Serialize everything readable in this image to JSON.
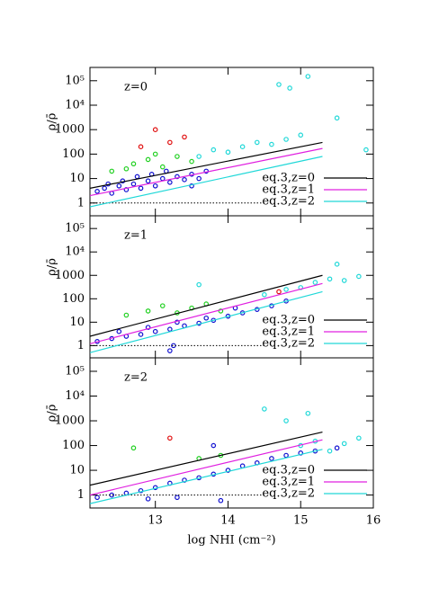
{
  "chart_data": [
    {
      "type": "scatter",
      "panel_label": "z=0",
      "ylabel": "ρ/ρ̄",
      "log_y": true,
      "xlim": [
        12.1,
        16
      ],
      "xticks": [
        13,
        14,
        15,
        16
      ],
      "ylim": [
        0.3,
        350000
      ],
      "yticks": [
        1,
        10,
        100,
        1000,
        {
          "value": 10000,
          "label": "10⁴"
        },
        {
          "value": 100000,
          "label": "10⁵"
        }
      ],
      "series": [
        {
          "color": "#1010d0",
          "x": [
            12.2,
            12.3,
            12.4,
            12.5,
            12.6,
            12.7,
            12.8,
            12.9,
            13.0,
            13.1,
            13.2,
            13.3,
            13.4,
            13.5,
            13.6,
            13.7,
            12.35,
            12.55,
            12.75,
            12.95,
            13.15,
            13.5
          ],
          "values": [
            3,
            4,
            2.5,
            5,
            3.5,
            6,
            4,
            8,
            5,
            10,
            7,
            12,
            9,
            15,
            10,
            20,
            6,
            8,
            12,
            15,
            20,
            5
          ]
        },
        {
          "color": "#20d020",
          "x": [
            12.4,
            12.7,
            12.9,
            13.1,
            13.3,
            13.5,
            13.0,
            12.6
          ],
          "values": [
            20,
            40,
            60,
            30,
            80,
            50,
            100,
            25
          ]
        },
        {
          "color": "#e01010",
          "x": [
            12.8,
            13.0,
            13.2,
            13.4
          ],
          "values": [
            200,
            1000,
            300,
            500
          ]
        },
        {
          "color": "#20d8d8",
          "x": [
            13.6,
            13.8,
            14.0,
            14.2,
            14.4,
            14.6,
            14.8,
            15.0,
            14.7,
            14.85,
            15.1,
            15.5,
            15.9
          ],
          "values": [
            80,
            150,
            120,
            200,
            300,
            250,
            400,
            600,
            70000,
            50000,
            150000,
            3000,
            150
          ]
        }
      ],
      "lines": [
        {
          "name": "eq.3,z=0",
          "color": "#000000",
          "x": [
            12.1,
            15.3
          ],
          "values": [
            4,
            300
          ]
        },
        {
          "name": "eq.3,z=1",
          "color": "#e020e0",
          "x": [
            12.1,
            15.3
          ],
          "values": [
            2,
            170
          ]
        },
        {
          "name": "eq.3,z=2",
          "color": "#20d8d8",
          "x": [
            12.1,
            15.3
          ],
          "values": [
            0.7,
            80
          ]
        }
      ],
      "reference": {
        "x": [
          12.1,
          14.5
        ],
        "values": [
          1,
          1
        ]
      }
    },
    {
      "type": "scatter",
      "panel_label": "z=1",
      "ylabel": "ρ/ρ̄",
      "log_y": true,
      "xlim": [
        12.1,
        16
      ],
      "xticks": [
        13,
        14,
        15,
        16
      ],
      "ylim": [
        0.3,
        350000
      ],
      "yticks": [
        1,
        10,
        100,
        1000,
        {
          "value": 10000,
          "label": "10⁴"
        },
        {
          "value": 100000,
          "label": "10⁵"
        }
      ],
      "series": [
        {
          "color": "#1010d0",
          "x": [
            12.2,
            12.4,
            12.6,
            12.8,
            13.0,
            13.2,
            13.4,
            13.6,
            13.8,
            14.0,
            14.2,
            14.4,
            14.6,
            14.8,
            12.5,
            12.9,
            13.3,
            13.7,
            13.2,
            13.25,
            14.1
          ],
          "values": [
            1.5,
            2,
            2.5,
            3,
            4,
            5,
            7,
            9,
            12,
            18,
            25,
            35,
            50,
            80,
            4,
            6,
            10,
            15,
            0.6,
            1,
            40
          ]
        },
        {
          "color": "#20d020",
          "x": [
            12.6,
            12.9,
            13.1,
            13.3,
            13.5,
            13.7,
            13.9
          ],
          "values": [
            20,
            30,
            50,
            25,
            40,
            60,
            30
          ]
        },
        {
          "color": "#e01010",
          "x": [
            14.7
          ],
          "values": [
            200
          ]
        },
        {
          "color": "#20d8d8",
          "x": [
            13.6,
            14.5,
            14.8,
            15.0,
            15.2,
            15.4,
            15.6,
            15.8,
            15.5
          ],
          "values": [
            400,
            150,
            250,
            300,
            500,
            700,
            600,
            900,
            3000
          ]
        }
      ],
      "lines": [
        {
          "name": "eq.3,z=0",
          "color": "#000000",
          "x": [
            12.1,
            15.3
          ],
          "values": [
            2.5,
            1000
          ]
        },
        {
          "name": "eq.3,z=1",
          "color": "#e020e0",
          "x": [
            12.1,
            15.3
          ],
          "values": [
            1.2,
            450
          ]
        },
        {
          "name": "eq.3,z=2",
          "color": "#20d8d8",
          "x": [
            12.1,
            15.3
          ],
          "values": [
            0.5,
            200
          ]
        }
      ],
      "reference": {
        "x": [
          12.1,
          14.5
        ],
        "values": [
          1,
          1
        ]
      }
    },
    {
      "type": "scatter",
      "panel_label": "z=2",
      "ylabel": "ρ/ρ̄",
      "log_y": true,
      "xlabel": "log NHI (cm⁻²)",
      "xlim": [
        12.1,
        16
      ],
      "xticks": [
        13,
        14,
        15,
        16
      ],
      "ylim": [
        0.3,
        350000
      ],
      "yticks": [
        1,
        10,
        100,
        1000,
        {
          "value": 10000,
          "label": "10⁴"
        },
        {
          "value": 100000,
          "label": "10⁵"
        }
      ],
      "series": [
        {
          "color": "#1010d0",
          "x": [
            12.2,
            12.4,
            12.6,
            12.8,
            13.0,
            13.2,
            13.4,
            13.6,
            13.8,
            14.0,
            14.2,
            14.4,
            14.6,
            14.8,
            15.0,
            15.2,
            15.5,
            13.3,
            13.8,
            12.9,
            13.9
          ],
          "values": [
            0.8,
            1,
            1.2,
            1.5,
            2,
            3,
            4,
            5,
            7,
            10,
            15,
            20,
            30,
            40,
            50,
            60,
            80,
            0.8,
            100,
            0.7,
            0.6
          ]
        },
        {
          "color": "#20d020",
          "x": [
            12.7,
            13.6,
            13.9
          ],
          "values": [
            80,
            30,
            40
          ]
        },
        {
          "color": "#e01010",
          "x": [
            13.2
          ],
          "values": [
            200
          ]
        },
        {
          "color": "#20d8d8",
          "x": [
            14.8,
            15.0,
            15.2,
            15.4,
            15.6,
            15.8,
            14.5,
            15.1
          ],
          "values": [
            1000,
            100,
            150,
            60,
            120,
            200,
            3000,
            2000
          ]
        }
      ],
      "lines": [
        {
          "name": "eq.3,z=0",
          "color": "#000000",
          "x": [
            12.1,
            15.3
          ],
          "values": [
            2.5,
            350
          ]
        },
        {
          "name": "eq.3,z=1",
          "color": "#e020e0",
          "x": [
            12.1,
            15.3
          ],
          "values": [
            1,
            170
          ]
        },
        {
          "name": "eq.3,z=2",
          "color": "#20d8d8",
          "x": [
            12.1,
            15.3
          ],
          "values": [
            0.45,
            70
          ]
        }
      ],
      "reference": {
        "x": [
          12.1,
          14.5
        ],
        "values": [
          1,
          1
        ]
      }
    }
  ]
}
